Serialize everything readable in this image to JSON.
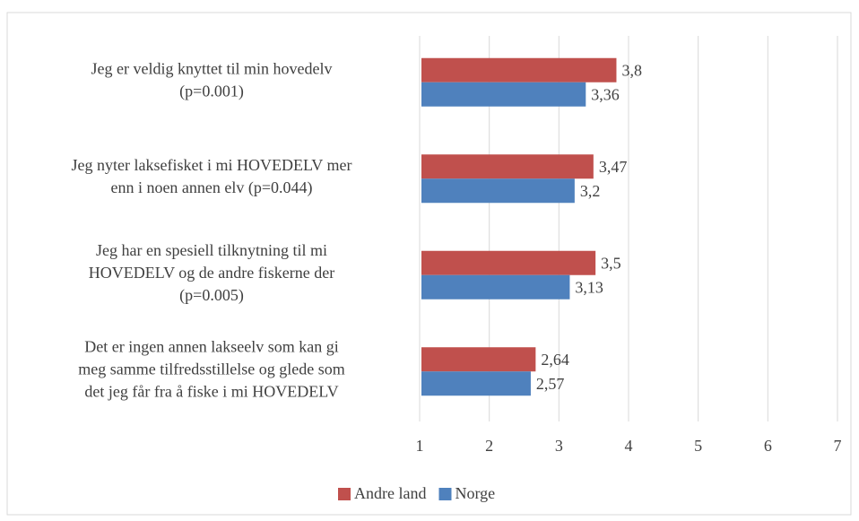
{
  "chart_data": {
    "type": "hbar",
    "categories": [
      [
        "Jeg er veldig knyttet til min hovedelv",
        "(p=0.001)"
      ],
      [
        "Jeg nyter laksefisket i mi HOVEDELV mer",
        "enn i noen annen elv (p=0.044)"
      ],
      [
        "Jeg har en spesiell tilknytning til mi",
        "HOVEDELV og de andre fiskerne der",
        "(p=0.005)"
      ],
      [
        "Det er ingen annen lakseelv som kan gi",
        "meg samme tilfredsstillelse og glede som",
        "det jeg får fra å fiske i mi HOVEDELV"
      ]
    ],
    "series": [
      {
        "name": "Andre land",
        "color": "#c0504d",
        "values": [
          3.8,
          3.47,
          3.5,
          2.64
        ],
        "value_labels": [
          "3,8",
          "3,47",
          "3,5",
          "2,64"
        ]
      },
      {
        "name": "Norge",
        "color": "#4f81bd",
        "values": [
          3.36,
          3.2,
          3.13,
          2.57
        ],
        "value_labels": [
          "3,36",
          "3,2",
          "3,13",
          "2,57"
        ]
      }
    ],
    "xlim": [
      1,
      7
    ],
    "xticks": [
      1,
      2,
      3,
      4,
      5,
      6,
      7
    ],
    "grid": true,
    "legend": "bottom"
  }
}
